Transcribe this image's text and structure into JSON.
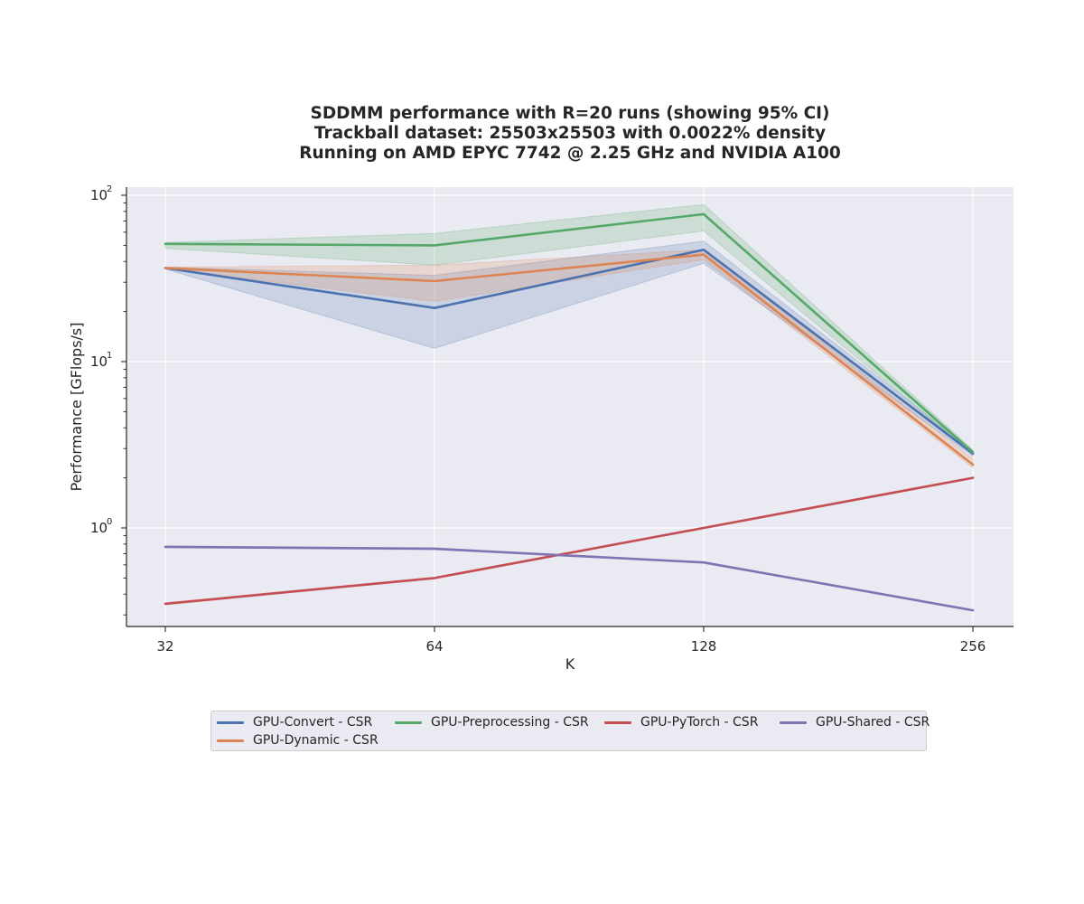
{
  "chart_data": {
    "type": "line",
    "title_lines": [
      "SDDMM performance with R=20 runs (showing 95% CI)",
      "Trackball dataset: 25503x25503 with 0.0022% density",
      "Running on AMD EPYC 7742 @ 2.25 GHz and NVIDIA A100"
    ],
    "xlabel": "K",
    "ylabel": "Performance [GFlops/s]",
    "x": [
      32,
      64,
      128,
      256
    ],
    "x_tick_labels": [
      "32",
      "64",
      "128",
      "256"
    ],
    "x_scale": "log2",
    "y_scale": "log",
    "ylim": [
      0.26,
      112
    ],
    "y_major_ticks": [
      1,
      10,
      100
    ],
    "y_tick_label_base": "10",
    "y_tick_label_exponents": [
      "0",
      "1",
      "2"
    ],
    "grid": true,
    "legend_placement": "below plot",
    "series": [
      {
        "name": "GPU-Convert - CSR",
        "color": "#4c72b0",
        "values": [
          36.5,
          21,
          47,
          2.8
        ],
        "ci_low": [
          36,
          12,
          39,
          2.7
        ],
        "ci_high": [
          37,
          33,
          53,
          2.9
        ]
      },
      {
        "name": "GPU-Dynamic - CSR",
        "color": "#dd8452",
        "values": [
          36.5,
          30.5,
          44,
          2.4
        ],
        "ci_low": [
          36,
          23,
          41,
          2.3
        ],
        "ci_high": [
          37,
          38,
          47,
          2.6
        ]
      },
      {
        "name": "GPU-Preprocessing - CSR",
        "color": "#55a868",
        "values": [
          51,
          50,
          77,
          2.85
        ],
        "ci_low": [
          48,
          38,
          61,
          2.8
        ],
        "ci_high": [
          52,
          59,
          88,
          2.95
        ]
      },
      {
        "name": "GPU-PyTorch - CSR",
        "color": "#c44e52",
        "values": [
          0.35,
          0.5,
          1.0,
          2.0
        ],
        "ci_low": [
          0.345,
          0.495,
          0.99,
          1.98
        ],
        "ci_high": [
          0.355,
          0.505,
          1.01,
          2.02
        ]
      },
      {
        "name": "GPU-Shared - CSR",
        "color": "#8172b3",
        "values": [
          0.77,
          0.75,
          0.62,
          0.32
        ],
        "ci_low": [
          0.76,
          0.74,
          0.615,
          0.318
        ],
        "ci_high": [
          0.78,
          0.76,
          0.625,
          0.322
        ]
      }
    ]
  },
  "colors": {
    "plot_background": "#eaeaf2",
    "grid": "#ffffff",
    "text": "#262626"
  }
}
